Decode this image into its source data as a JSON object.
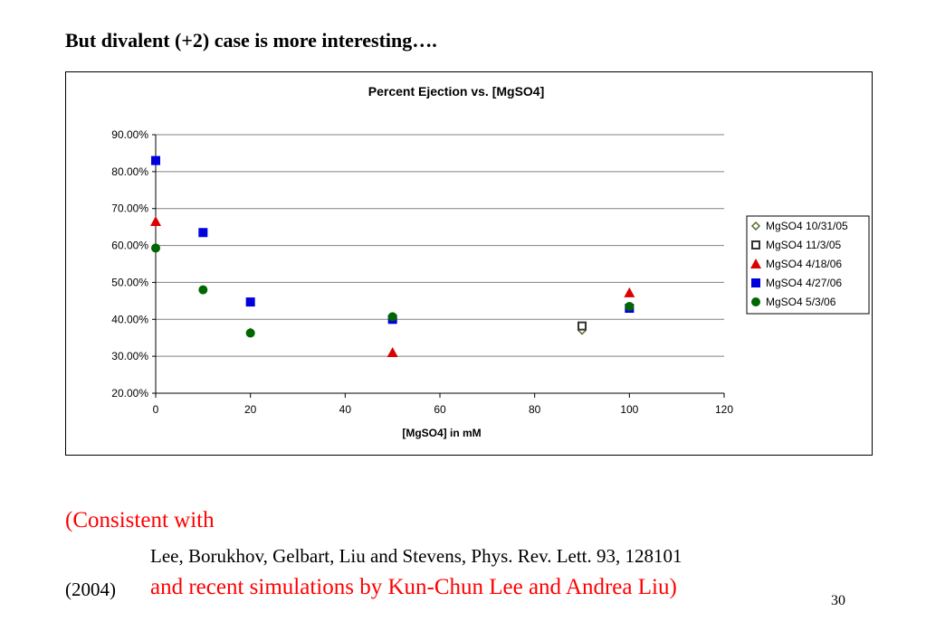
{
  "slide": {
    "title": "But divalent (+2) case is more interesting….",
    "consistent_text": "(Consistent with",
    "reference_text": "Lee, Borukhov, Gelbart, Liu and Stevens, Phys. Rev. Lett. 93, 128101",
    "reference_year": "(2004)",
    "simulations_text": "and recent simulations by Kun-Chun Lee and Andrea Liu)",
    "slide_number": "30"
  },
  "chart_data": {
    "type": "scatter",
    "title": "Percent Ejection vs. [MgSO4]",
    "xlabel": "[MgSO4] in mM",
    "ylabel": "",
    "xlim": [
      0,
      120
    ],
    "ylim": [
      0.2,
      0.9
    ],
    "x_ticks": [
      "0",
      "20",
      "40",
      "60",
      "80",
      "100",
      "120"
    ],
    "y_ticks": [
      "20.00%",
      "30.00%",
      "40.00%",
      "50.00%",
      "60.00%",
      "70.00%",
      "80.00%",
      "90.00%"
    ],
    "grid": "horizontal",
    "legend_position": "right",
    "series": [
      {
        "name": "MgSO4 10/31/05",
        "marker": "diamond-open",
        "color": "#556b2f",
        "points": [
          {
            "x": 20,
            "y": 0.365
          },
          {
            "x": 50,
            "y": 0.405
          },
          {
            "x": 90,
            "y": 0.37
          }
        ]
      },
      {
        "name": "MgSO4 11/3/05",
        "marker": "square-open",
        "color": "#333333",
        "points": [
          {
            "x": 90,
            "y": 0.382
          }
        ]
      },
      {
        "name": "MgSO4 4/18/06",
        "marker": "triangle",
        "color": "#dd0000",
        "points": [
          {
            "x": 0,
            "y": 0.665
          },
          {
            "x": 50,
            "y": 0.31
          },
          {
            "x": 100,
            "y": 0.472
          }
        ]
      },
      {
        "name": "MgSO4 4/27/06",
        "marker": "square",
        "color": "#0000dd",
        "points": [
          {
            "x": 0,
            "y": 0.83
          },
          {
            "x": 10,
            "y": 0.635
          },
          {
            "x": 20,
            "y": 0.447
          },
          {
            "x": 50,
            "y": 0.4
          },
          {
            "x": 100,
            "y": 0.43
          }
        ]
      },
      {
        "name": "MgSO4 5/3/06",
        "marker": "circle",
        "color": "#006600",
        "points": [
          {
            "x": 0,
            "y": 0.593
          },
          {
            "x": 10,
            "y": 0.48
          },
          {
            "x": 20,
            "y": 0.363
          },
          {
            "x": 50,
            "y": 0.407
          },
          {
            "x": 100,
            "y": 0.435
          }
        ]
      }
    ]
  }
}
